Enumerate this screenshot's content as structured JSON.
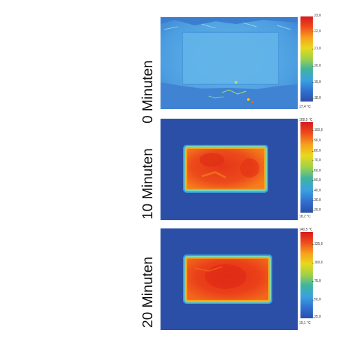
{
  "panels": [
    {
      "label": "0 Minuten",
      "max_label": "",
      "min_label": "17,4 °C",
      "scale_ticks": [
        "22,0",
        "21,0",
        "20,0",
        "19,0",
        "18,0"
      ],
      "scale_top_tick": "23,0",
      "colors": {
        "background": "#3f86d2",
        "object": "#5aaee6"
      }
    },
    {
      "label": "10 Minuten",
      "max_label": "108,5 °C",
      "min_label": "18,2 °C",
      "scale_ticks": [
        "100,0",
        "90,0",
        "80,0",
        "70,0",
        "60,0",
        "50,0",
        "40,0",
        "30,0",
        "20,0"
      ],
      "colors": {
        "background": "#2b4fa6",
        "object": "#e8421c"
      }
    },
    {
      "label": "20 Minuten",
      "max_label": "140,5 °C",
      "min_label": "19,1 °C",
      "scale_ticks": [
        "125,0",
        "100,0",
        "75,0",
        "50,0",
        "25,0"
      ],
      "colors": {
        "background": "#2b4fa6",
        "object": "#e8421c"
      }
    }
  ]
}
